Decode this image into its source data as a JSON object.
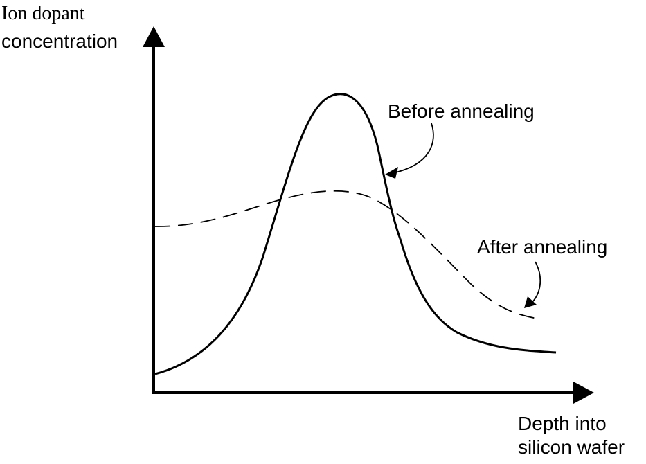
{
  "figure": {
    "y_axis_label_line1": "Ion dopant",
    "y_axis_label_line2": "concentration",
    "x_axis_label_line1": "Depth into",
    "x_axis_label_line2": "silicon wafer",
    "before_label": "Before annealing",
    "after_label": "After annealing"
  },
  "colors": {
    "ink": "#000000",
    "background": "#ffffff"
  },
  "icons": {
    "y_axis_arrow": "arrowhead-up-icon",
    "x_axis_arrow": "arrowhead-right-icon",
    "before_pointer": "curved-arrow-icon",
    "after_pointer": "curved-arrow-icon"
  }
}
